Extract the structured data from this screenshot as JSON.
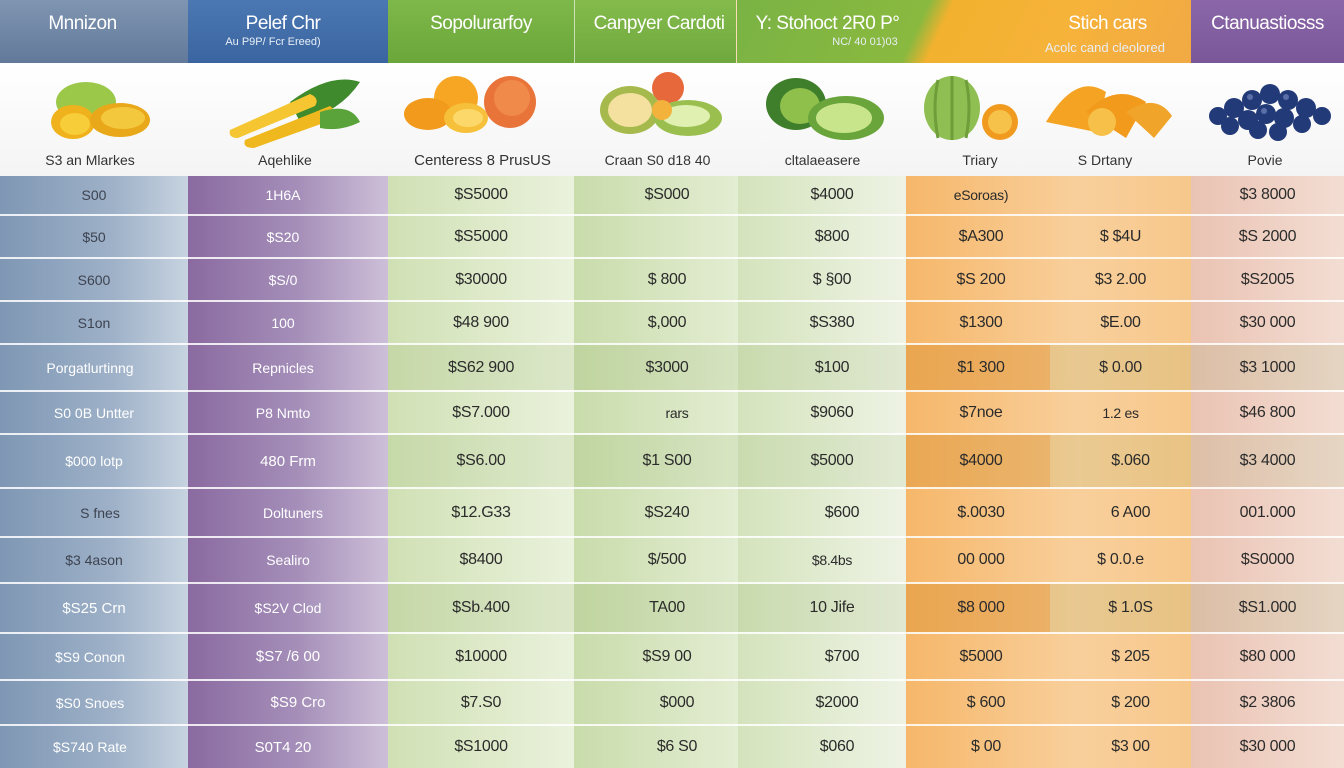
{
  "header": {
    "col1_title": "Mnnizon",
    "col2_title": "Pelef Chr",
    "col2_sub": "Au P9P/ Fcr Ereed)",
    "col3_title": "Sopolurarfoy",
    "col4_title": "Canpyer Cardoti",
    "col5_title": "Y: Stohoct  2R0 P°",
    "col5_sub": "NC/ 40 01)03",
    "col6_title": "Stich cars",
    "col6_sub": "Acolc cand cleolored",
    "col7_title": "Ctanuastiosss"
  },
  "captions": {
    "c1": "S3 an Mlarkes",
    "c2": "Aqehlike",
    "c3": "Centeress 8 PrusUS",
    "c4": "Craan S0 d18 40",
    "c5": "cltalaeasere",
    "c6": "Triary",
    "c7": "S Drtany",
    "c8": "Povie"
  },
  "rows": [
    [
      "S00",
      "1H6A",
      "$S5000",
      "$S000",
      "$4000",
      "eSoroas)",
      "",
      "$3 8000"
    ],
    [
      "$50",
      "$S20",
      "$S5000",
      "",
      "$800",
      "$A300",
      "$ $4U",
      "$S 2000"
    ],
    [
      "S600",
      "$S/0",
      "$30000",
      "$ 800",
      "$ §00",
      "$S 200",
      "$3 2.00",
      "$S2005"
    ],
    [
      "S1on",
      "100",
      "$48 900",
      "$,000",
      "$S380",
      "$1300",
      "$E.00",
      "$30 000"
    ],
    [
      "Porgatlurtinng",
      "Repnicles",
      "$S62 900",
      "$3000",
      "$100",
      "$1 300",
      "$ 0.00",
      "$3 1000"
    ],
    [
      "S0 0B Untter",
      "P8 Nmto",
      "$S7.000",
      "rars",
      "$9060",
      "$7noe",
      "1.2 es",
      "$46 800"
    ],
    [
      "$000 lotp",
      "480 Frm",
      "$S6.00",
      "$1 S00",
      "$5000",
      "$4000",
      "$.060",
      "$3 4000"
    ],
    [
      "S fnes",
      "Doltuners",
      "$12.G33",
      "$S240",
      "$600",
      "$.0030",
      "6 A00",
      "001.000"
    ],
    [
      "$3 4ason",
      "Sealiro",
      "$8400",
      "$/500",
      "$8.4bs",
      "00 000",
      "$ 0.0.e",
      "$S0000"
    ],
    [
      "$S25  Crn",
      "$S2V Clod",
      "$Sb.400",
      "TA00",
      "10 Jife",
      "$8 000",
      "$ 1.0S",
      "$S1.000"
    ],
    [
      "$S9 Conon",
      "$S7 /6 00",
      "$10000",
      "$S9 00",
      "$700",
      "$5000",
      "$ 205",
      "$80 000"
    ],
    [
      "$S0 Snoes",
      "$S9 Cro",
      "$7.S0",
      "$000",
      "$2000",
      "$ 600",
      "$ 200",
      "$2 3806"
    ],
    [
      "$S740 Rate",
      "S0T4 20",
      "$S1000",
      "$6 S0",
      "$060",
      "$ 00",
      "$3 00",
      "$30 000"
    ]
  ],
  "icons": [
    "mango-icon",
    "corn-icon",
    "orange-peach-icon",
    "melon-slice-icon",
    "avocado-icon",
    "melon-orange-icon",
    "orange-slices-icon",
    "blueberries-icon"
  ]
}
